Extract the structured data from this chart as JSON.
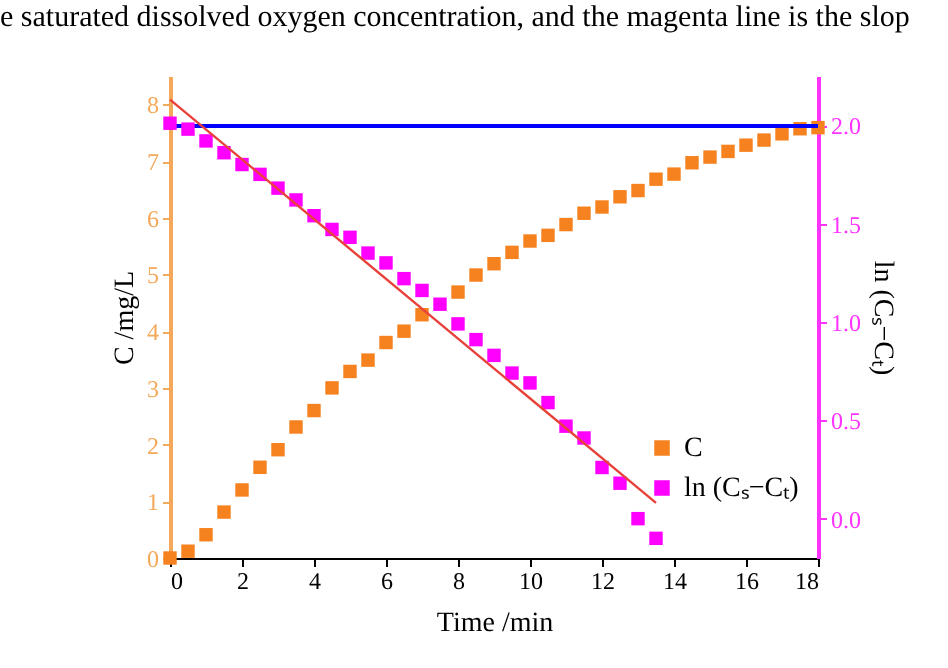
{
  "chart_data": {
    "type": "scatter",
    "annotations": [
      "e saturated dissolved oxygen concentration, and the magenta line is the slop"
    ],
    "xlabel": "Time /min",
    "ylabel": "C /mg/L",
    "y2label": "ln (Cₛ−Cₜ)",
    "xlim": [
      0,
      18
    ],
    "xticks": [
      0,
      2,
      4,
      6,
      8,
      10,
      12,
      14,
      16,
      18
    ],
    "ylim": [
      0,
      8.5
    ],
    "yticks": [
      0,
      1,
      2,
      3,
      4,
      5,
      6,
      7,
      8
    ],
    "y2lim": [
      -0.2,
      2.25
    ],
    "y2ticks": [
      {
        "value": 0,
        "label": "0.0"
      },
      {
        "value": 0.5,
        "label": "0.5"
      },
      {
        "value": 1,
        "label": "1.0"
      },
      {
        "value": 1.5,
        "label": "1.5"
      },
      {
        "value": 2,
        "label": "2.0"
      }
    ],
    "marker": "square",
    "grid": false,
    "legend": "bottom right",
    "ref_lines": [
      {
        "axis": "y",
        "value": 7.62,
        "color": "#0000ff"
      }
    ],
    "series": [
      {
        "name": "C",
        "color": "#f5821f",
        "x": [
          0,
          0.5,
          1,
          1.5,
          2,
          2.5,
          3,
          3.5,
          4,
          4.5,
          5,
          5.5,
          6,
          6.5,
          7,
          7.5,
          8,
          8.5,
          9,
          9.5,
          10,
          10.5,
          11,
          11.5,
          12,
          12.5,
          13,
          13.5,
          14,
          14.5,
          15,
          15.5,
          16,
          16.5,
          17,
          17.5,
          18
        ],
        "values": [
          0,
          0.12,
          0.41,
          0.81,
          1.2,
          1.6,
          1.91,
          2.31,
          2.6,
          3.0,
          3.29,
          3.49,
          3.8,
          4.0,
          4.29,
          null,
          4.69,
          4.99,
          5.19,
          5.39,
          5.59,
          5.69,
          5.88,
          6.08,
          6.19,
          6.37,
          6.48,
          6.68,
          6.77,
          6.97,
          7.07,
          7.17,
          7.28,
          7.37,
          7.48,
          7.57,
          7.59
        ]
      },
      {
        "name": "ln (Cₛ−Cₜ)",
        "color": "#ff00ff",
        "axis": "y2",
        "x": [
          0,
          0.5,
          1,
          1.5,
          2,
          2.5,
          3,
          3.5,
          4,
          4.5,
          5,
          5.5,
          6,
          6.5,
          7,
          7.5,
          8,
          8.5,
          9,
          9.5,
          10,
          10.5,
          11,
          11.5,
          12,
          12.5,
          13,
          13.5
        ],
        "values": [
          2.01,
          1.98,
          1.92,
          1.86,
          1.8,
          1.75,
          1.68,
          1.62,
          1.54,
          1.47,
          1.43,
          1.35,
          1.3,
          1.22,
          1.16,
          1.09,
          0.99,
          0.91,
          0.83,
          0.74,
          0.69,
          0.59,
          0.47,
          0.41,
          0.26,
          0.18,
          0.0,
          -0.1
        ]
      },
      {
        "type": "line",
        "marker": "none",
        "line_style": "solid",
        "color": "#e8413a",
        "axis": "y2",
        "x": [
          0,
          13.5
        ],
        "values": [
          2.13,
          0.08
        ]
      }
    ]
  }
}
